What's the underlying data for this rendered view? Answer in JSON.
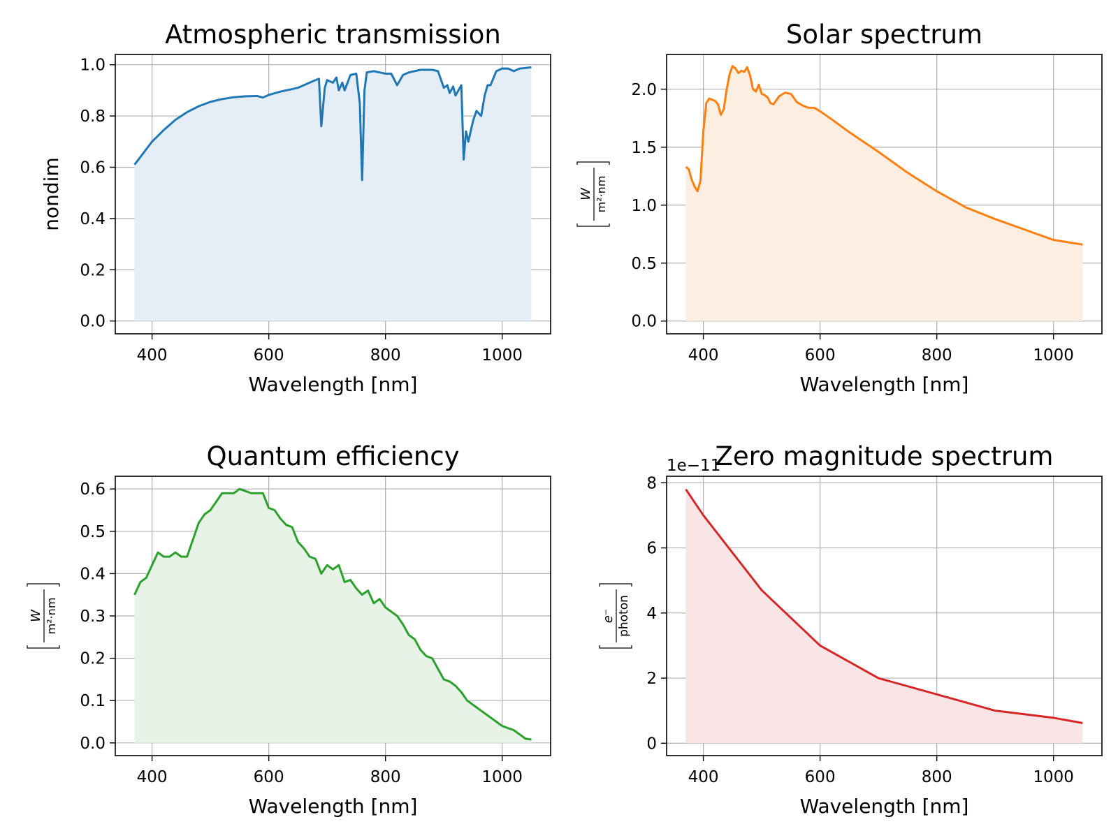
{
  "chart_data": [
    {
      "type": "area",
      "title": "Atmospheric transmission",
      "xlabel": "Wavelength [nm]",
      "ylabel": {
        "kind": "text",
        "text": "nondim"
      },
      "xlim": [
        337,
        1083
      ],
      "ylim": [
        -0.05,
        1.04
      ],
      "xticks": [
        400,
        600,
        800,
        1000
      ],
      "yticks": [
        0.0,
        0.2,
        0.4,
        0.6,
        0.8,
        1.0
      ],
      "ytick_labels": [
        "0.0",
        "0.2",
        "0.4",
        "0.6",
        "0.8",
        "1.0"
      ],
      "grid": true,
      "color": "#1f77b4",
      "fill": "#e5eef7",
      "series": [
        {
          "x": [
            370,
            380,
            400,
            420,
            440,
            460,
            480,
            500,
            520,
            540,
            560,
            580,
            590,
            600,
            620,
            640,
            650,
            660,
            680,
            686,
            690,
            696,
            700,
            710,
            716,
            720,
            726,
            730,
            740,
            750,
            756,
            760,
            764,
            768,
            780,
            790,
            800,
            810,
            820,
            830,
            840,
            860,
            880,
            890,
            900,
            906,
            910,
            916,
            920,
            925,
            930,
            934,
            938,
            942,
            950,
            956,
            964,
            970,
            975,
            980,
            990,
            1000,
            1010,
            1020,
            1030,
            1050
          ],
          "y": [
            0.61,
            0.64,
            0.7,
            0.745,
            0.785,
            0.815,
            0.838,
            0.855,
            0.866,
            0.873,
            0.877,
            0.878,
            0.872,
            0.882,
            0.895,
            0.905,
            0.91,
            0.92,
            0.94,
            0.945,
            0.76,
            0.91,
            0.94,
            0.93,
            0.95,
            0.9,
            0.93,
            0.9,
            0.96,
            0.965,
            0.85,
            0.55,
            0.9,
            0.97,
            0.975,
            0.97,
            0.965,
            0.965,
            0.92,
            0.96,
            0.97,
            0.98,
            0.98,
            0.975,
            0.91,
            0.92,
            0.89,
            0.915,
            0.88,
            0.9,
            0.92,
            0.63,
            0.74,
            0.7,
            0.78,
            0.82,
            0.8,
            0.88,
            0.92,
            0.92,
            0.975,
            0.985,
            0.985,
            0.975,
            0.985,
            0.99
          ]
        }
      ]
    },
    {
      "type": "area",
      "title": "Solar spectrum",
      "xlabel": "Wavelength [nm]",
      "ylabel": {
        "kind": "fraction",
        "numerator": "W",
        "denominator": "m²·nm"
      },
      "xlim": [
        337,
        1083
      ],
      "ylim": [
        -0.11,
        2.3
      ],
      "xticks": [
        400,
        600,
        800,
        1000
      ],
      "yticks": [
        0.0,
        0.5,
        1.0,
        1.5,
        2.0
      ],
      "ytick_labels": [
        "0.0",
        "0.5",
        "1.0",
        "1.5",
        "2.0"
      ],
      "grid": true,
      "color": "#ff7f0e",
      "fill": "#fdeee2",
      "series": [
        {
          "x": [
            370,
            375,
            380,
            385,
            390,
            395,
            400,
            405,
            410,
            415,
            420,
            425,
            430,
            435,
            440,
            445,
            450,
            455,
            460,
            465,
            470,
            475,
            480,
            485,
            490,
            495,
            500,
            505,
            510,
            515,
            520,
            530,
            540,
            550,
            560,
            570,
            580,
            590,
            600,
            620,
            650,
            700,
            750,
            800,
            850,
            900,
            950,
            1000,
            1050
          ],
          "y": [
            1.33,
            1.31,
            1.22,
            1.16,
            1.12,
            1.21,
            1.64,
            1.88,
            1.92,
            1.91,
            1.9,
            1.87,
            1.78,
            1.83,
            2.0,
            2.13,
            2.2,
            2.18,
            2.14,
            2.16,
            2.15,
            2.19,
            2.12,
            2.0,
            1.98,
            2.04,
            1.96,
            1.95,
            1.93,
            1.88,
            1.87,
            1.94,
            1.97,
            1.96,
            1.89,
            1.86,
            1.84,
            1.84,
            1.81,
            1.74,
            1.63,
            1.46,
            1.28,
            1.12,
            0.98,
            0.88,
            0.79,
            0.7,
            0.66
          ]
        }
      ]
    },
    {
      "type": "area",
      "title": "Quantum efficiency",
      "xlabel": "Wavelength [nm]",
      "ylabel": {
        "kind": "fraction",
        "numerator": "W",
        "denominator": "m²·nm"
      },
      "xlim": [
        337,
        1083
      ],
      "ylim": [
        -0.03,
        0.63
      ],
      "xticks": [
        400,
        600,
        800,
        1000
      ],
      "yticks": [
        0.0,
        0.1,
        0.2,
        0.3,
        0.4,
        0.5,
        0.6
      ],
      "ytick_labels": [
        "0.0",
        "0.1",
        "0.2",
        "0.3",
        "0.4",
        "0.5",
        "0.6"
      ],
      "grid": true,
      "color": "#2ca02c",
      "fill": "#e6f3e6",
      "series": [
        {
          "x": [
            370,
            380,
            390,
            400,
            410,
            420,
            430,
            440,
            450,
            460,
            470,
            480,
            490,
            500,
            510,
            520,
            530,
            540,
            550,
            560,
            570,
            580,
            590,
            600,
            610,
            620,
            630,
            640,
            650,
            660,
            670,
            680,
            690,
            700,
            710,
            720,
            730,
            740,
            750,
            760,
            770,
            780,
            790,
            800,
            810,
            820,
            830,
            840,
            850,
            860,
            870,
            880,
            890,
            900,
            910,
            920,
            930,
            940,
            950,
            960,
            970,
            980,
            990,
            1000,
            1010,
            1020,
            1030,
            1040,
            1050
          ],
          "y": [
            0.35,
            0.38,
            0.39,
            0.42,
            0.45,
            0.44,
            0.44,
            0.45,
            0.44,
            0.44,
            0.48,
            0.52,
            0.54,
            0.55,
            0.57,
            0.59,
            0.59,
            0.59,
            0.6,
            0.595,
            0.59,
            0.59,
            0.59,
            0.555,
            0.55,
            0.53,
            0.515,
            0.51,
            0.475,
            0.46,
            0.44,
            0.435,
            0.4,
            0.42,
            0.41,
            0.42,
            0.38,
            0.385,
            0.365,
            0.35,
            0.36,
            0.33,
            0.34,
            0.32,
            0.31,
            0.3,
            0.28,
            0.255,
            0.245,
            0.22,
            0.205,
            0.2,
            0.175,
            0.15,
            0.145,
            0.135,
            0.12,
            0.1,
            0.09,
            0.08,
            0.07,
            0.06,
            0.05,
            0.04,
            0.035,
            0.03,
            0.02,
            0.01,
            0.008
          ]
        }
      ]
    },
    {
      "type": "area",
      "title": "Zero magnitude spectrum",
      "xlabel": "Wavelength [nm]",
      "ylabel": {
        "kind": "fraction",
        "numerator": "e⁻",
        "denominator": "photon"
      },
      "offset_text": "1e−11",
      "xlim": [
        337,
        1083
      ],
      "ylim": [
        -0.38,
        8.2
      ],
      "xticks": [
        400,
        600,
        800,
        1000
      ],
      "yticks": [
        0,
        2,
        4,
        6,
        8
      ],
      "ytick_labels": [
        "0",
        "2",
        "4",
        "6",
        "8"
      ],
      "grid": true,
      "color": "#d62728",
      "fill": "#f9e5e5",
      "series": [
        {
          "x": [
            370,
            400,
            500,
            600,
            700,
            800,
            900,
            1000,
            1050
          ],
          "y": [
            7.8,
            7.0,
            4.7,
            3.0,
            2.0,
            1.5,
            1.0,
            0.78,
            0.62
          ]
        }
      ]
    }
  ]
}
